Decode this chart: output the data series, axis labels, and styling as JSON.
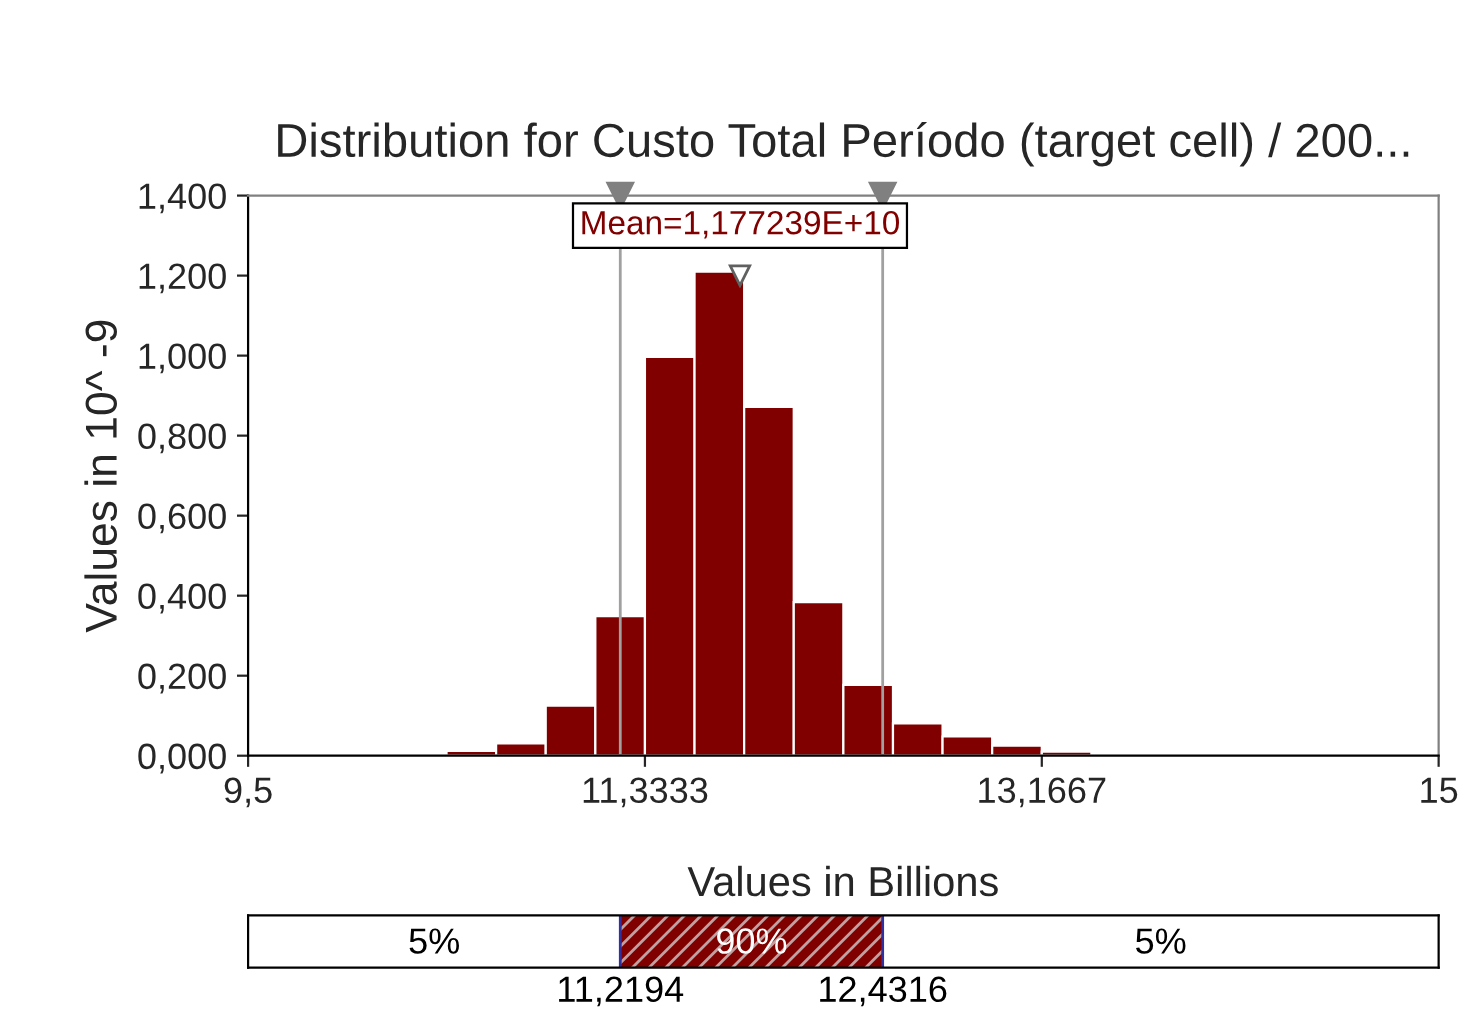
{
  "chart_data": {
    "type": "histogram",
    "title": "Distribution for Custo Total Período (target cell) / 200...",
    "xlabel": "Values in Billions",
    "ylabel": "Values in 10^ -9",
    "color": "#800000",
    "bins": [
      10.4167,
      10.6458,
      10.875,
      11.1042,
      11.3333,
      11.5625,
      11.7917,
      12.0208,
      12.25,
      12.4792,
      12.7083,
      12.9375,
      13.1667,
      13.3958
    ],
    "values": [
      0.012,
      0.031,
      0.125,
      0.349,
      0.997,
      1.21,
      0.872,
      0.384,
      0.177,
      0.081,
      0.048,
      0.025,
      0.01
    ],
    "xlim": [
      9.5,
      15
    ],
    "xticks": [
      {
        "value": 9.5,
        "label": "9,5"
      },
      {
        "value": 11.3333,
        "label": "11,3333"
      },
      {
        "value": 13.1667,
        "label": "13,1667"
      },
      15
    ],
    "ylim": [
      0,
      1.4
    ],
    "yticks": [
      {
        "value": 0,
        "label": "0,000"
      },
      {
        "value": 0.2,
        "label": "0,200"
      },
      {
        "value": 0.4,
        "label": "0,400"
      },
      {
        "value": 0.6,
        "label": "0,600"
      },
      {
        "value": 0.8,
        "label": "0,800"
      },
      {
        "value": 1.0,
        "label": "1,000"
      },
      {
        "value": 1.2,
        "label": "1,200"
      },
      {
        "value": 1.4,
        "label": "1,400"
      }
    ],
    "ref_lines": [
      {
        "axis": "x",
        "value": 11.2194,
        "color": "#a0a0a0"
      },
      {
        "axis": "x",
        "value": 12.4316,
        "color": "#a0a0a0"
      }
    ],
    "annotations": [
      {
        "text": "Mean=1,177239E+10",
        "x": 11.77239,
        "y": 1.2
      },
      "5%",
      "90%",
      "5%",
      "11,2194",
      "12,4316"
    ],
    "grid": false
  }
}
